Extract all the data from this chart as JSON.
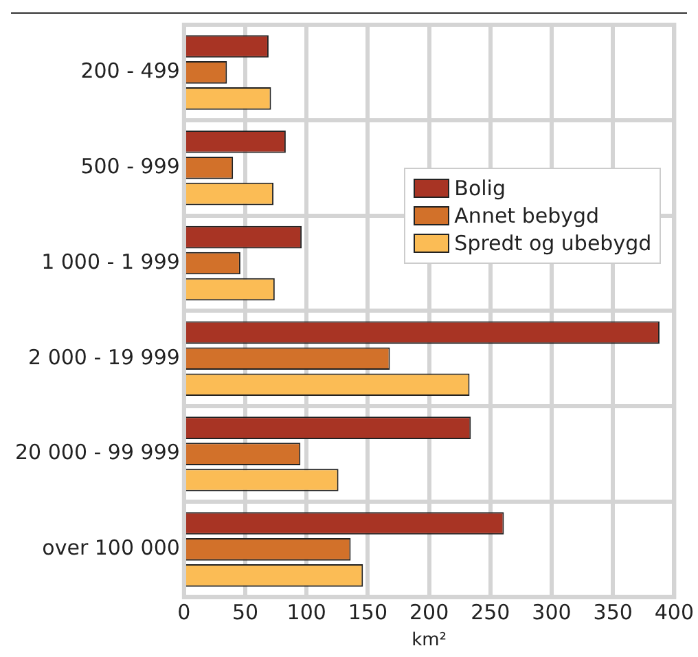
{
  "chart_data": {
    "type": "bar",
    "orientation": "horizontal",
    "xlabel": "km²",
    "categories": [
      "200 - 499",
      "500 - 999",
      "1 000 - 1 999",
      "2 000 - 19 999",
      "20 000 - 99 999",
      "over 100 000"
    ],
    "series": [
      {
        "name": "Bolig",
        "color": "#a83424",
        "values": [
          69,
          83,
          96,
          388,
          234,
          261
        ]
      },
      {
        "name": "Annet bebygd",
        "color": "#d2712a",
        "values": [
          35,
          40,
          46,
          168,
          95,
          136
        ]
      },
      {
        "name": "Spredt og ubebygd",
        "color": "#fbbc55",
        "values": [
          71,
          73,
          74,
          233,
          126,
          146
        ]
      }
    ],
    "xlim": [
      0,
      400
    ],
    "xticks": [
      0,
      50,
      100,
      150,
      200,
      250,
      300,
      350,
      400
    ],
    "grid": true,
    "legend": "right"
  }
}
